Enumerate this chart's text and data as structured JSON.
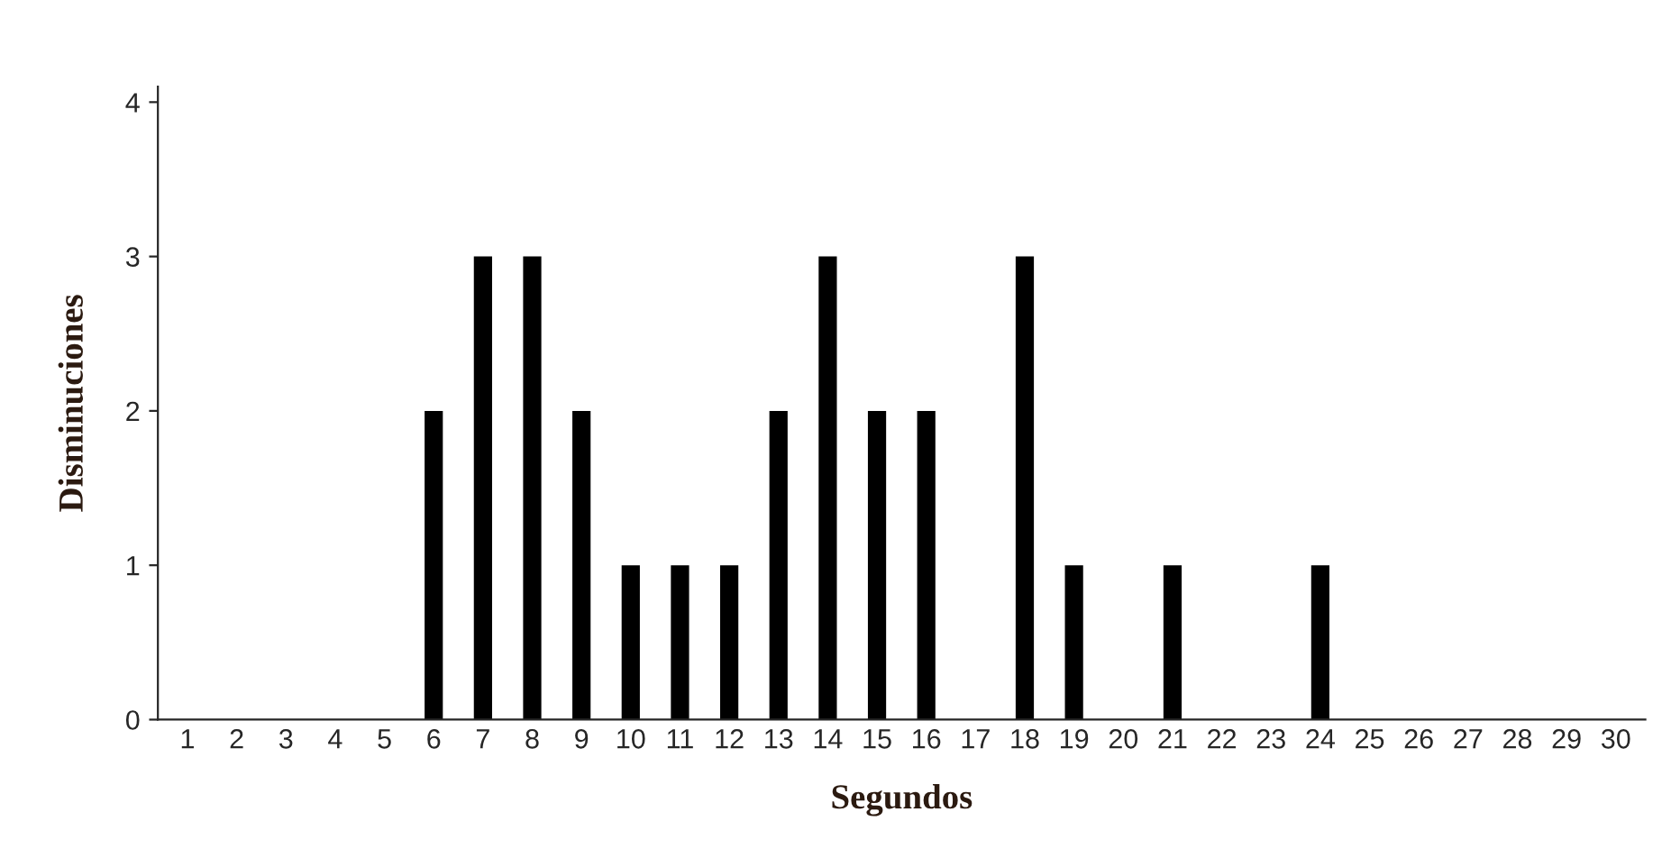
{
  "chart_data": {
    "type": "bar",
    "xlabel": "Segundos",
    "ylabel": "Disminuciones",
    "categories": [
      "1",
      "2",
      "3",
      "4",
      "5",
      "6",
      "7",
      "8",
      "9",
      "10",
      "11",
      "12",
      "13",
      "14",
      "15",
      "16",
      "17",
      "18",
      "19",
      "20",
      "21",
      "22",
      "23",
      "24",
      "25",
      "26",
      "27",
      "28",
      "29",
      "30"
    ],
    "values": [
      0,
      0,
      0,
      0,
      0,
      2,
      3,
      3,
      2,
      1,
      1,
      1,
      2,
      3,
      2,
      2,
      0,
      3,
      1,
      0,
      1,
      0,
      0,
      1,
      0,
      0,
      0,
      0,
      0,
      0
    ],
    "color": "#000000",
    "ylim": [
      0,
      4.1
    ],
    "yticks": [
      0,
      1,
      2,
      3,
      4
    ],
    "grid": false,
    "legend": false
  }
}
